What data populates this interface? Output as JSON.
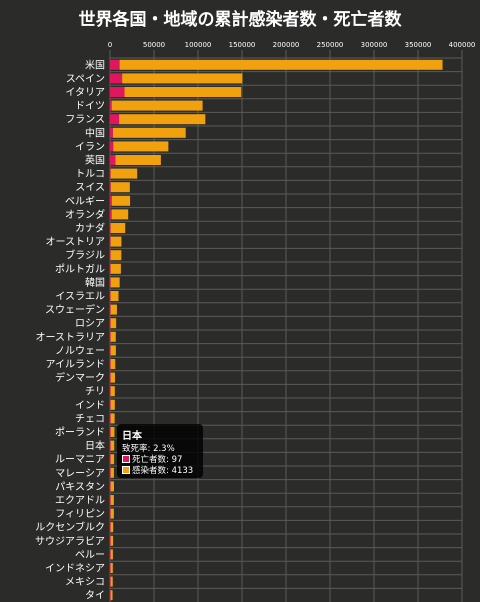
{
  "chart_data": {
    "type": "bar",
    "orientation": "horizontal",
    "stacked": true,
    "title": "世界各国・地域の累計感染者数・死亡者数",
    "xlim": [
      0,
      400000
    ],
    "xticks": [
      "0",
      "50000",
      "100000",
      "150000",
      "200000",
      "250000",
      "300000",
      "350000",
      "400000"
    ],
    "grid": true,
    "categories": [
      "米国",
      "スペイン",
      "イタリア",
      "ドイツ",
      "フランス",
      "中国",
      "イラン",
      "英国",
      "トルコ",
      "スイス",
      "ベルギー",
      "オランダ",
      "カナダ",
      "オーストリア",
      "ブラジル",
      "ポルトガル",
      "韓国",
      "イスラエル",
      "スウェーデン",
      "ロシア",
      "オーストラリア",
      "ノルウェー",
      "アイルランド",
      "デンマーク",
      "チリ",
      "インド",
      "チェコ",
      "ポーランド",
      "日本",
      "ルーマニア",
      "マレーシア",
      "パキスタン",
      "エクアドル",
      "フィリピン",
      "ルクセンブルク",
      "サウジアラビア",
      "ペルー",
      "インドネシア",
      "メキシコ",
      "タイ"
    ],
    "series": [
      {
        "name": "死亡者数",
        "color": "#e0175f",
        "values": [
          10900,
          13800,
          16500,
          1900,
          10300,
          3330,
          3740,
          6200,
          650,
          850,
          2000,
          1870,
          370,
          270,
          670,
          310,
          190,
          60,
          590,
          50,
          50,
          80,
          200,
          180,
          25,
          150,
          60,
          170,
          97,
          150,
          60,
          40,
          190,
          160,
          50,
          40,
          110,
          210,
          140,
          30
        ]
      },
      {
        "name": "感染者数",
        "color": "#f2a10e",
        "values": [
          367000,
          136700,
          132500,
          103300,
          98000,
          82700,
          62600,
          51600,
          30200,
          21700,
          20800,
          18800,
          16600,
          12300,
          12200,
          11700,
          10300,
          9000,
          7200,
          6300,
          5900,
          6000,
          5300,
          5000,
          4800,
          4800,
          4600,
          4400,
          4133,
          4000,
          3800,
          3800,
          3700,
          3700,
          2900,
          2800,
          2600,
          2500,
          2400,
          2200
        ]
      }
    ]
  },
  "tooltip": {
    "title": "日本",
    "rate": "致死率: 2.3%",
    "deaths": "死亡者数: 97",
    "cases": "感染者数: 4133",
    "deaths_color": "#e0175f",
    "cases_color": "#f2a10e"
  }
}
